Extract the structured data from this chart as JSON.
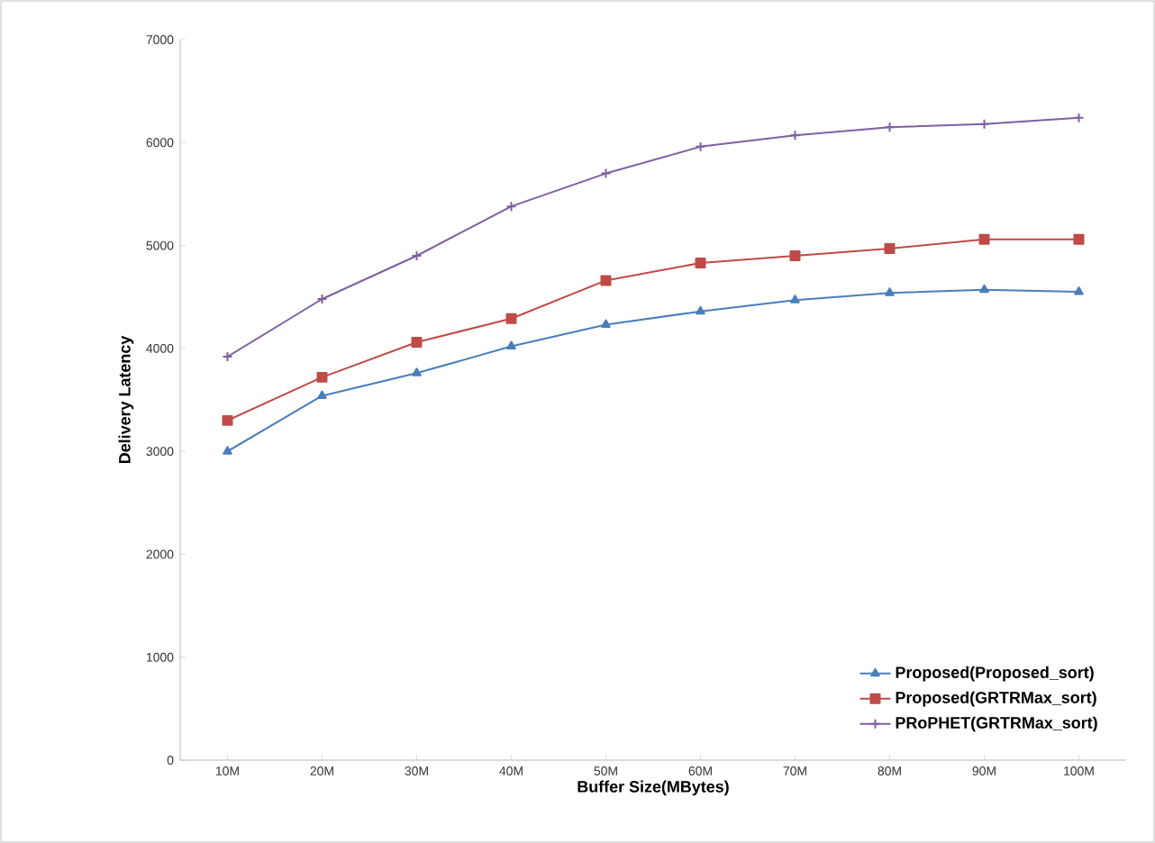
{
  "chart_data": {
    "type": "line",
    "xlabel": "Buffer Size(MBytes)",
    "ylabel": "Delivery Latency",
    "categories": [
      "10M",
      "20M",
      "30M",
      "40M",
      "50M",
      "60M",
      "70M",
      "80M",
      "90M",
      "100M"
    ],
    "ylim": [
      0,
      7000
    ],
    "yticks": [
      0,
      1000,
      2000,
      3000,
      4000,
      5000,
      6000,
      7000
    ],
    "grid": false,
    "legend": "bottom right",
    "series": [
      {
        "name": "Proposed(Proposed_sort)",
        "color": "#4a7ebb",
        "marker": "triangle",
        "values": [
          3000,
          3540,
          3760,
          4020,
          4230,
          4360,
          4470,
          4540,
          4570,
          4550
        ]
      },
      {
        "name": "Proposed(GRTRMax_sort)",
        "color": "#be4b48",
        "marker": "square",
        "values": [
          3300,
          3720,
          4060,
          4290,
          4660,
          4830,
          4900,
          4970,
          5060,
          5060
        ]
      },
      {
        "name": "PRoPHET(GRTRMax_sort)",
        "color": "#7d60a0",
        "marker": "cross",
        "values": [
          3920,
          4480,
          4900,
          5380,
          5700,
          5960,
          6070,
          6150,
          6180,
          6240
        ]
      }
    ]
  }
}
